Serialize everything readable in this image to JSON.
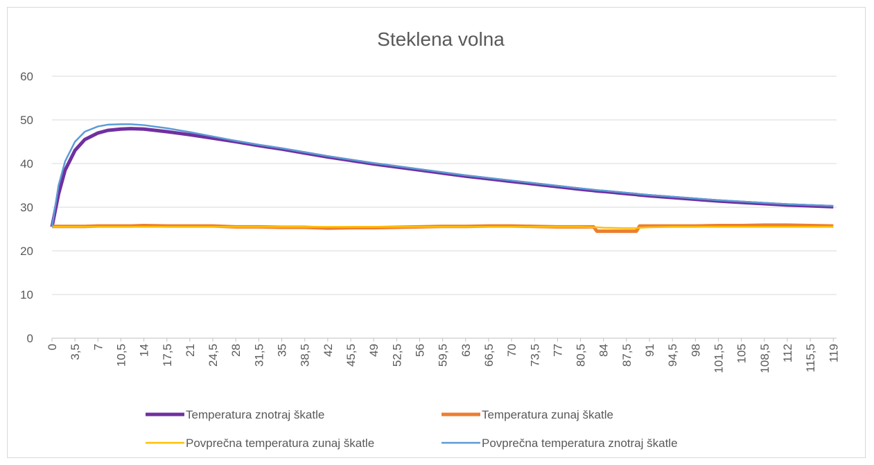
{
  "chart_data": {
    "type": "line",
    "title": "Steklena volna",
    "x": [
      0,
      1,
      2,
      3.5,
      5,
      7,
      8.5,
      10.5,
      12,
      14,
      17.5,
      21,
      24.5,
      28,
      31.5,
      35,
      38.5,
      42,
      45.5,
      49,
      52.5,
      56,
      59.5,
      63,
      66.5,
      70,
      73.5,
      77,
      80.5,
      82.5,
      83,
      84,
      87.5,
      89,
      89.5,
      91,
      94.5,
      98,
      101.5,
      105,
      108.5,
      112,
      115.5,
      119
    ],
    "series": [
      {
        "name": "Temperatura znotraj škatle",
        "color": "#7030a0",
        "width": 5,
        "values": [
          25.5,
          33,
          38.5,
          43,
          45.5,
          47,
          47.6,
          47.9,
          48,
          47.9,
          47.3,
          46.6,
          45.8,
          45,
          44.1,
          43.3,
          42.4,
          41.5,
          40.7,
          39.9,
          39.2,
          38.5,
          37.8,
          37.1,
          36.5,
          35.9,
          35.3,
          34.7,
          34.1,
          33.8,
          33.7,
          33.6,
          33.1,
          32.9,
          32.8,
          32.6,
          32.2,
          31.8,
          31.4,
          31.1,
          30.8,
          30.5,
          30.3,
          30.1
        ]
      },
      {
        "name": "Temperatura zunaj škatle",
        "color": "#ed7d31",
        "width": 5,
        "values": [
          25.6,
          25.6,
          25.6,
          25.6,
          25.6,
          25.7,
          25.7,
          25.7,
          25.7,
          25.8,
          25.7,
          25.7,
          25.7,
          25.5,
          25.5,
          25.4,
          25.4,
          25.2,
          25.3,
          25.3,
          25.4,
          25.5,
          25.6,
          25.6,
          25.7,
          25.7,
          25.6,
          25.5,
          25.5,
          25.5,
          24.5,
          24.5,
          24.5,
          24.5,
          25.7,
          25.7,
          25.7,
          25.7,
          25.8,
          25.8,
          25.9,
          25.9,
          25.8,
          25.7
        ]
      },
      {
        "name": "Povprečna temperatura zunaj škatle",
        "color": "#ffc000",
        "width": 2.5,
        "values": [
          25.5,
          25.5,
          25.5,
          25.5,
          25.5,
          25.5,
          25.5,
          25.5,
          25.5,
          25.5,
          25.5,
          25.5,
          25.5,
          25.5,
          25.5,
          25.5,
          25.5,
          25.5,
          25.5,
          25.5,
          25.5,
          25.5,
          25.5,
          25.5,
          25.5,
          25.5,
          25.5,
          25.5,
          25.5,
          25.4,
          25.4,
          25.3,
          25.2,
          25.2,
          25.3,
          25.4,
          25.5,
          25.5,
          25.5,
          25.5,
          25.5,
          25.5,
          25.5,
          25.5
        ]
      },
      {
        "name": "Povprečna temperatura znotraj škatle",
        "color": "#5b9bd5",
        "width": 2.5,
        "values": [
          25.5,
          35,
          40.5,
          45,
          47.3,
          48.5,
          48.9,
          49,
          49,
          48.8,
          48.1,
          47.2,
          46.2,
          45.2,
          44.3,
          43.5,
          42.6,
          41.7,
          40.9,
          40.1,
          39.4,
          38.7,
          38,
          37.3,
          36.7,
          36.1,
          35.5,
          34.9,
          34.3,
          34,
          33.9,
          33.8,
          33.3,
          33.1,
          33,
          32.8,
          32.4,
          32,
          31.6,
          31.3,
          31,
          30.7,
          30.5,
          30.3
        ]
      }
    ],
    "xlim": [
      0,
      119.5
    ],
    "xticks": [
      0,
      {
        "value": 3.5,
        "label": "3,5"
      },
      7,
      {
        "value": 10.5,
        "label": "10,5"
      },
      14,
      {
        "value": 17.5,
        "label": "17,5"
      },
      21,
      {
        "value": 24.5,
        "label": "24,5"
      },
      28,
      {
        "value": 31.5,
        "label": "31,5"
      },
      35,
      {
        "value": 38.5,
        "label": "38,5"
      },
      42,
      {
        "value": 45.5,
        "label": "45,5"
      },
      49,
      {
        "value": 52.5,
        "label": "52,5"
      },
      56,
      {
        "value": 59.5,
        "label": "59,5"
      },
      63,
      {
        "value": 66.5,
        "label": "66,5"
      },
      70,
      {
        "value": 73.5,
        "label": "73,5"
      },
      77,
      {
        "value": 80.5,
        "label": "80,5"
      },
      84,
      {
        "value": 87.5,
        "label": "87,5"
      },
      91,
      {
        "value": 94.5,
        "label": "94,5"
      },
      98,
      {
        "value": 101.5,
        "label": "101,5"
      },
      105,
      {
        "value": 108.5,
        "label": "108,5"
      },
      112,
      {
        "value": 115.5,
        "label": "115,5"
      },
      119
    ],
    "ylim": [
      0,
      60
    ],
    "yticks": [
      0,
      10,
      20,
      30,
      40,
      50,
      60
    ],
    "grid": true
  }
}
